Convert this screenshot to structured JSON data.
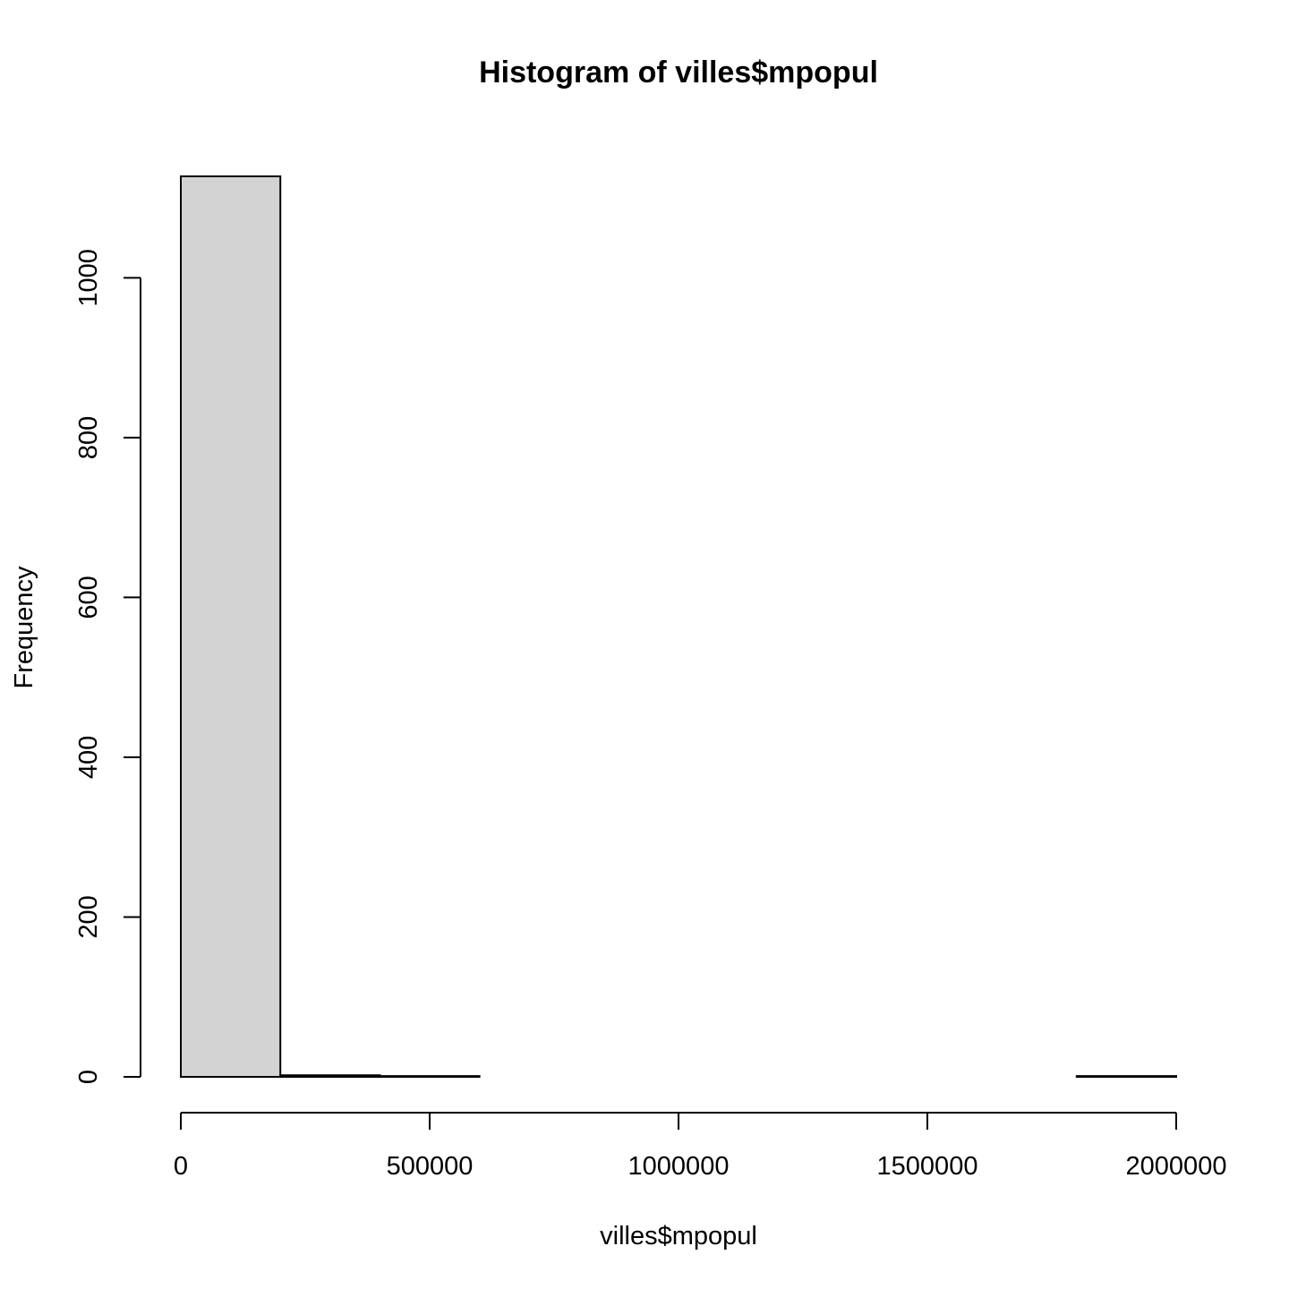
{
  "chart_data": {
    "type": "bar",
    "title": "Histogram of villes$mpopul",
    "xlabel": "villes$mpopul",
    "ylabel": "Frequency",
    "bin_edges": [
      0,
      200000,
      400000,
      600000,
      800000,
      1000000,
      1200000,
      1400000,
      1600000,
      1800000,
      2000000
    ],
    "values": [
      1127,
      2,
      1,
      0,
      0,
      0,
      0,
      0,
      0,
      1
    ],
    "xlim": [
      0,
      2000000
    ],
    "ylim": [
      0,
      1127
    ],
    "x_ticks": [
      0,
      500000,
      1000000,
      1500000,
      2000000
    ],
    "x_tick_labels": [
      "0",
      "500000",
      "1000000",
      "1500000",
      "2000000"
    ],
    "y_ticks": [
      0,
      200,
      400,
      600,
      800,
      1000
    ],
    "y_tick_labels": [
      "0",
      "200",
      "400",
      "600",
      "800",
      "1000"
    ],
    "grid": false,
    "bar_color": "#d3d3d3",
    "edge_color": "#000000"
  }
}
